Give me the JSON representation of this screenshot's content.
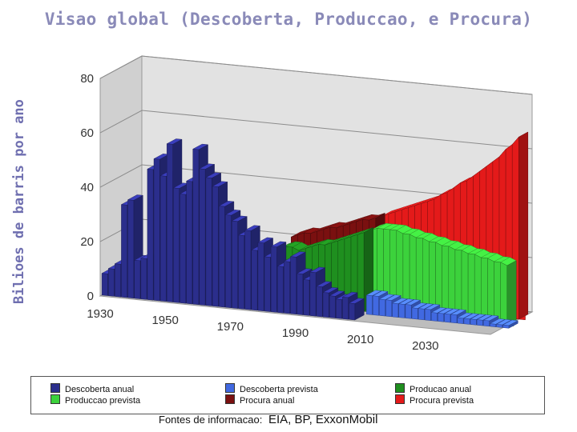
{
  "chart_data": {
    "type": "bar",
    "title": "Visao global (Descoberta, Produccao, e Procura)",
    "ylabel": "Bilioes de barris por ano",
    "ylim": [
      0,
      80
    ],
    "yticks": [
      "0",
      "20",
      "40",
      "60",
      "80"
    ],
    "xticks": [
      "1930",
      "1950",
      "1970",
      "1990",
      "2010",
      "2030"
    ],
    "grid": true,
    "projection": "3d",
    "years": [
      1930,
      1932,
      1934,
      1936,
      1938,
      1940,
      1942,
      1944,
      1946,
      1948,
      1950,
      1952,
      1954,
      1956,
      1958,
      1960,
      1962,
      1964,
      1966,
      1968,
      1970,
      1972,
      1974,
      1976,
      1978,
      1980,
      1982,
      1984,
      1986,
      1988,
      1990,
      1992,
      1994,
      1996,
      1998,
      2000,
      2002,
      2004,
      2006,
      2008,
      2010,
      2012,
      2014,
      2016,
      2018,
      2020,
      2022,
      2024,
      2026,
      2028,
      2030,
      2032,
      2034,
      2036,
      2038,
      2040,
      2042,
      2044,
      2046,
      2048,
      2050
    ],
    "series": [
      {
        "name": "Descoberta anual",
        "color": "#2b2e8c",
        "start_year": 1930,
        "values": [
          8,
          10,
          12,
          34,
          36,
          14,
          15,
          48,
          52,
          46,
          58,
          42,
          40,
          45,
          57,
          50,
          47,
          44,
          37,
          34,
          32,
          27,
          29,
          22,
          25,
          20,
          24,
          17,
          19,
          21,
          15,
          13,
          16,
          11,
          9,
          8,
          7,
          8,
          6
        ]
      },
      {
        "name": "Descoberta prevista",
        "color": "#4169e1",
        "start_year": 2008,
        "values": [
          7,
          7,
          6,
          6,
          5,
          5,
          5,
          4,
          4,
          4,
          3,
          3,
          3,
          3,
          2,
          2,
          2,
          2,
          2,
          1,
          1,
          1
        ]
      },
      {
        "name": "Producao anual",
        "color": "#1f8f1f",
        "start_year": 1980,
        "values": [
          20,
          21,
          21,
          20,
          21,
          22,
          23,
          23,
          24,
          25,
          26,
          27,
          28,
          29
        ]
      },
      {
        "name": "Produccao prevista",
        "color": "#3cd23c",
        "start_year": 2008,
        "values": [
          30,
          31,
          31,
          31,
          31,
          30,
          30,
          29,
          29,
          28,
          28,
          27,
          27,
          26,
          26,
          25,
          25,
          24,
          24,
          23,
          23,
          22
        ]
      },
      {
        "name": "Procura anual",
        "color": "#7a1010",
        "start_year": 1980,
        "values": [
          22,
          23,
          24,
          24,
          25,
          26,
          27,
          27,
          28,
          29,
          30,
          31,
          31,
          32
        ]
      },
      {
        "name": "Procura prevista",
        "color": "#e41a1a",
        "start_year": 2008,
        "values": [
          33,
          34,
          35,
          36,
          37,
          38,
          39,
          40,
          41,
          43,
          44,
          46,
          48,
          49,
          51,
          53,
          55,
          57,
          59,
          62,
          64,
          67
        ]
      }
    ]
  },
  "legend": {
    "items": [
      {
        "label": "Descoberta anual",
        "color": "#2b2e8c"
      },
      {
        "label": "Descoberta prevista",
        "color": "#4169e1"
      },
      {
        "label": "Producao anual",
        "color": "#1f8f1f"
      },
      {
        "label": "Produccao prevista",
        "color": "#3cd23c"
      },
      {
        "label": "Procura anual",
        "color": "#7a1010"
      },
      {
        "label": "Procura prevista",
        "color": "#e41a1a"
      }
    ]
  },
  "sources": {
    "label": "Fontes de informacao:",
    "value": "EIA, BP, ExxonMobil"
  }
}
